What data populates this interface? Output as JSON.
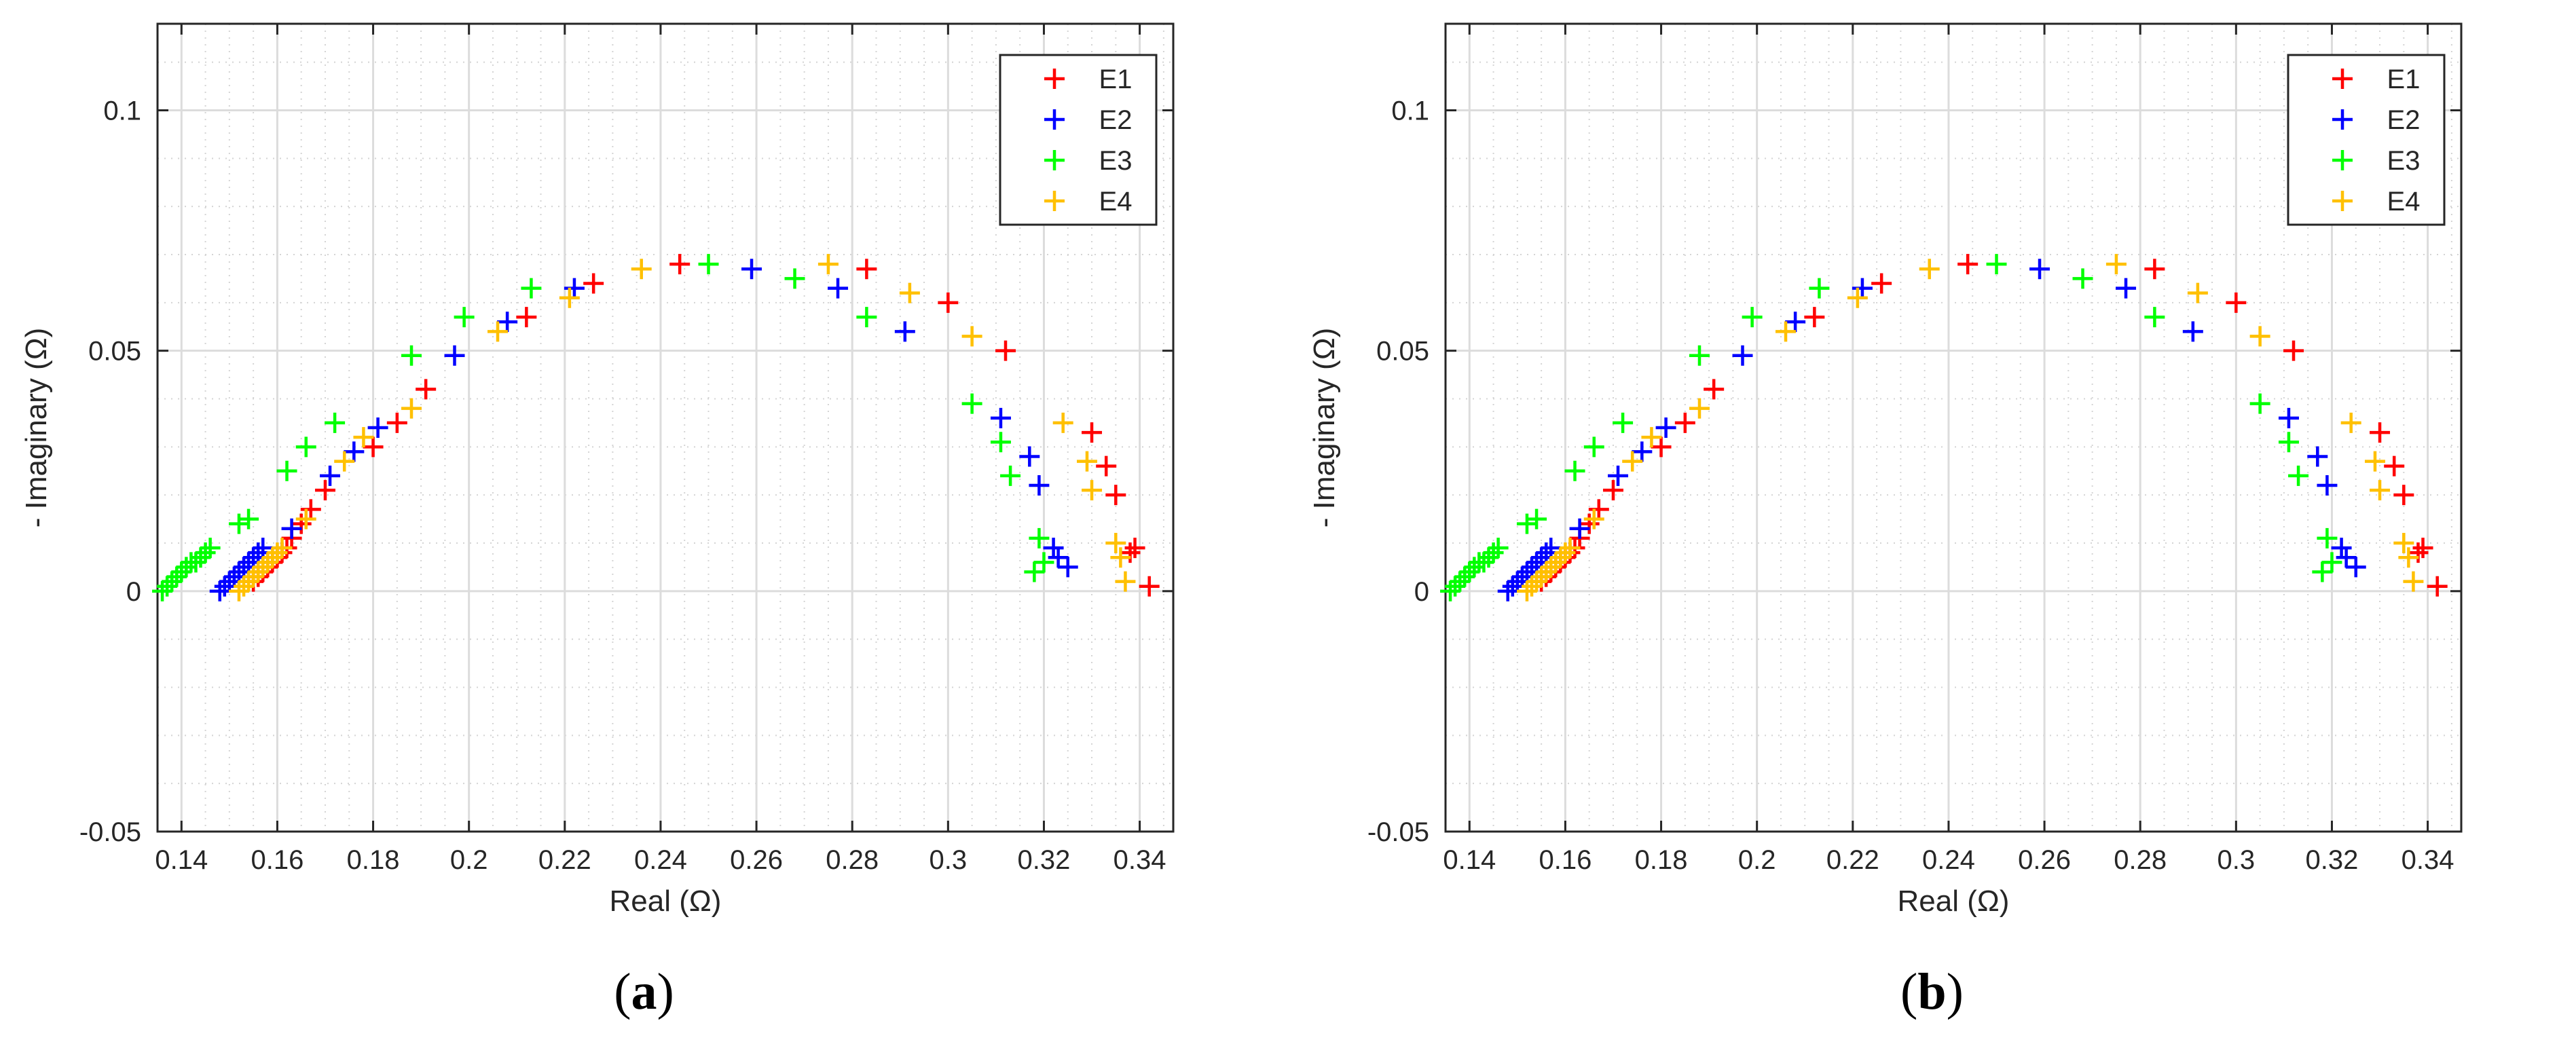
{
  "chart_data": [
    {
      "type": "scatter",
      "panel_label": "a",
      "xlabel": "Real (Ω)",
      "ylabel": "- Imaginary (Ω)",
      "xlim": [
        0.135,
        0.347
      ],
      "ylim": [
        -0.05,
        0.118
      ],
      "xticks": [
        0.14,
        0.16,
        0.18,
        0.2,
        0.22,
        0.24,
        0.26,
        0.28,
        0.3,
        0.32,
        0.34
      ],
      "xtick_labels": [
        "0.14",
        "0.16",
        "0.18",
        "0.2",
        "0.22",
        "0.24",
        "0.26",
        "0.28",
        "0.3",
        "0.32",
        "0.34"
      ],
      "yticks": [
        -0.05,
        0,
        0.05,
        0.1
      ],
      "ytick_labels": [
        "-0.05",
        "0",
        "0.05",
        "0.1"
      ],
      "grid": true,
      "minor_grid": true,
      "legend_position": "top-right",
      "marker": "+",
      "series": [
        {
          "name": "E1",
          "color": "#ff0000",
          "x": [
            0.155,
            0.156,
            0.157,
            0.158,
            0.159,
            0.16,
            0.161,
            0.162,
            0.163,
            0.165,
            0.167,
            0.17,
            0.18,
            0.185,
            0.191,
            0.212,
            0.226,
            0.244,
            0.283,
            0.3,
            0.312,
            0.33,
            0.333,
            0.335,
            0.339,
            0.338,
            0.342
          ],
          "y": [
            0.002,
            0.003,
            0.004,
            0.005,
            0.006,
            0.007,
            0.008,
            0.009,
            0.011,
            0.014,
            0.017,
            0.021,
            0.03,
            0.035,
            0.042,
            0.057,
            0.064,
            0.068,
            0.067,
            0.06,
            0.05,
            0.033,
            0.026,
            0.02,
            0.009,
            0.008,
            0.001
          ]
        },
        {
          "name": "E2",
          "color": "#0000ff",
          "x": [
            0.148,
            0.149,
            0.15,
            0.151,
            0.152,
            0.153,
            0.154,
            0.155,
            0.156,
            0.157,
            0.163,
            0.171,
            0.176,
            0.181,
            0.197,
            0.208,
            0.222,
            0.259,
            0.277,
            0.291,
            0.311,
            0.317,
            0.319,
            0.322,
            0.323,
            0.325
          ],
          "y": [
            0.0,
            0.001,
            0.002,
            0.003,
            0.004,
            0.005,
            0.006,
            0.007,
            0.008,
            0.009,
            0.013,
            0.024,
            0.029,
            0.034,
            0.049,
            0.056,
            0.063,
            0.067,
            0.063,
            0.054,
            0.036,
            0.028,
            0.022,
            0.009,
            0.007,
            0.005
          ]
        },
        {
          "name": "E3",
          "color": "#00ff00",
          "x": [
            0.136,
            0.137,
            0.138,
            0.139,
            0.14,
            0.141,
            0.142,
            0.143,
            0.144,
            0.145,
            0.146,
            0.152,
            0.154,
            0.162,
            0.166,
            0.172,
            0.188,
            0.199,
            0.213,
            0.25,
            0.268,
            0.283,
            0.305,
            0.311,
            0.313,
            0.319,
            0.32,
            0.318
          ],
          "y": [
            0.0,
            0.001,
            0.002,
            0.003,
            0.004,
            0.005,
            0.006,
            0.006,
            0.007,
            0.008,
            0.009,
            0.014,
            0.015,
            0.025,
            0.03,
            0.035,
            0.049,
            0.057,
            0.063,
            0.068,
            0.065,
            0.057,
            0.039,
            0.031,
            0.024,
            0.011,
            0.006,
            0.004
          ]
        },
        {
          "name": "E4",
          "color": "#ffc000",
          "x": [
            0.152,
            0.153,
            0.154,
            0.155,
            0.156,
            0.157,
            0.158,
            0.159,
            0.16,
            0.161,
            0.166,
            0.174,
            0.178,
            0.188,
            0.206,
            0.221,
            0.236,
            0.275,
            0.292,
            0.305,
            0.324,
            0.329,
            0.33,
            0.335,
            0.336,
            0.337
          ],
          "y": [
            0.0,
            0.001,
            0.002,
            0.003,
            0.004,
            0.005,
            0.006,
            0.007,
            0.008,
            0.009,
            0.015,
            0.027,
            0.032,
            0.038,
            0.054,
            0.061,
            0.067,
            0.068,
            0.062,
            0.053,
            0.035,
            0.027,
            0.021,
            0.01,
            0.007,
            0.002
          ]
        }
      ]
    },
    {
      "type": "scatter",
      "panel_label": "b",
      "xlabel": "Real (Ω)",
      "ylabel": "- Imaginary (Ω)",
      "xlim": [
        0.135,
        0.347
      ],
      "ylim": [
        -0.05,
        0.118
      ],
      "xticks": [
        0.14,
        0.16,
        0.18,
        0.2,
        0.22,
        0.24,
        0.26,
        0.28,
        0.3,
        0.32,
        0.34
      ],
      "xtick_labels": [
        "0.14",
        "0.16",
        "0.18",
        "0.2",
        "0.22",
        "0.24",
        "0.26",
        "0.28",
        "0.3",
        "0.32",
        "0.34"
      ],
      "yticks": [
        -0.05,
        0,
        0.05,
        0.1
      ],
      "ytick_labels": [
        "-0.05",
        "0",
        "0.05",
        "0.1"
      ],
      "grid": true,
      "minor_grid": true,
      "legend_position": "top-right",
      "marker": "+",
      "series": [
        {
          "name": "E1",
          "color": "#ff0000",
          "x": [
            0.155,
            0.156,
            0.157,
            0.158,
            0.159,
            0.16,
            0.161,
            0.162,
            0.163,
            0.165,
            0.167,
            0.17,
            0.18,
            0.185,
            0.191,
            0.212,
            0.226,
            0.244,
            0.283,
            0.3,
            0.312,
            0.33,
            0.333,
            0.335,
            0.339,
            0.338,
            0.342
          ],
          "y": [
            0.002,
            0.003,
            0.004,
            0.005,
            0.006,
            0.007,
            0.008,
            0.009,
            0.011,
            0.014,
            0.017,
            0.021,
            0.03,
            0.035,
            0.042,
            0.057,
            0.064,
            0.068,
            0.067,
            0.06,
            0.05,
            0.033,
            0.026,
            0.02,
            0.009,
            0.008,
            0.001
          ]
        },
        {
          "name": "E2",
          "color": "#0000ff",
          "x": [
            0.148,
            0.149,
            0.15,
            0.151,
            0.152,
            0.153,
            0.154,
            0.155,
            0.156,
            0.157,
            0.163,
            0.171,
            0.176,
            0.181,
            0.197,
            0.208,
            0.222,
            0.259,
            0.277,
            0.291,
            0.311,
            0.317,
            0.319,
            0.322,
            0.323,
            0.325
          ],
          "y": [
            0.0,
            0.001,
            0.002,
            0.003,
            0.004,
            0.005,
            0.006,
            0.007,
            0.008,
            0.009,
            0.013,
            0.024,
            0.029,
            0.034,
            0.049,
            0.056,
            0.063,
            0.067,
            0.063,
            0.054,
            0.036,
            0.028,
            0.022,
            0.009,
            0.007,
            0.005
          ]
        },
        {
          "name": "E3",
          "color": "#00ff00",
          "x": [
            0.136,
            0.137,
            0.138,
            0.139,
            0.14,
            0.141,
            0.142,
            0.143,
            0.144,
            0.145,
            0.146,
            0.152,
            0.154,
            0.162,
            0.166,
            0.172,
            0.188,
            0.199,
            0.213,
            0.25,
            0.268,
            0.283,
            0.305,
            0.311,
            0.313,
            0.319,
            0.32,
            0.318
          ],
          "y": [
            0.0,
            0.001,
            0.002,
            0.003,
            0.004,
            0.005,
            0.006,
            0.006,
            0.007,
            0.008,
            0.009,
            0.014,
            0.015,
            0.025,
            0.03,
            0.035,
            0.049,
            0.057,
            0.063,
            0.068,
            0.065,
            0.057,
            0.039,
            0.031,
            0.024,
            0.011,
            0.006,
            0.004
          ]
        },
        {
          "name": "E4",
          "color": "#ffc000",
          "x": [
            0.152,
            0.153,
            0.154,
            0.155,
            0.156,
            0.157,
            0.158,
            0.159,
            0.16,
            0.161,
            0.166,
            0.174,
            0.178,
            0.188,
            0.206,
            0.221,
            0.236,
            0.275,
            0.292,
            0.305,
            0.324,
            0.329,
            0.33,
            0.335,
            0.336,
            0.337
          ],
          "y": [
            0.0,
            0.001,
            0.002,
            0.003,
            0.004,
            0.005,
            0.006,
            0.007,
            0.008,
            0.009,
            0.015,
            0.027,
            0.032,
            0.038,
            0.054,
            0.061,
            0.067,
            0.068,
            0.062,
            0.053,
            0.035,
            0.027,
            0.021,
            0.01,
            0.007,
            0.002
          ]
        }
      ]
    }
  ]
}
